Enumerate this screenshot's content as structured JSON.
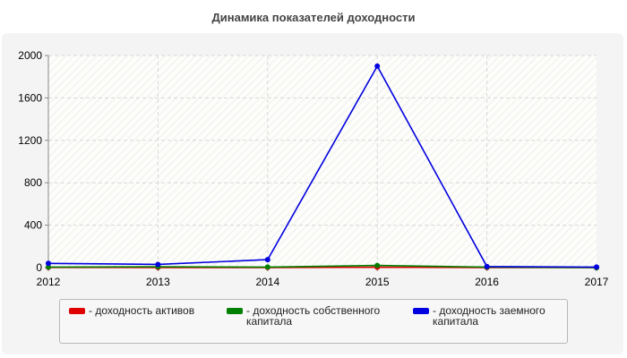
{
  "chart_data": {
    "type": "line",
    "title": "Динамика показателей доходности",
    "x": [
      2012,
      2013,
      2014,
      2015,
      2016,
      2017
    ],
    "x_tick_labels": [
      "2012",
      "2013",
      "2014",
      "2015",
      "2016",
      "2017"
    ],
    "y_tick_labels": [
      "0",
      "400",
      "800",
      "1200",
      "1600",
      "2000"
    ],
    "ylim": [
      0,
      2000
    ],
    "xlim": [
      2012,
      2017
    ],
    "grid": true,
    "legend_position": "bottom",
    "series": [
      {
        "name": "- доходность активов",
        "color": "#e00000",
        "values": [
          2,
          1,
          1,
          3,
          1,
          0
        ]
      },
      {
        "name": "- доходность собственного капитала",
        "color": "#008000",
        "values": [
          5,
          8,
          5,
          20,
          5,
          0
        ]
      },
      {
        "name": "- доходность заемного капитала",
        "color": "#0000e0",
        "values": [
          40,
          30,
          75,
          1900,
          10,
          5
        ]
      }
    ]
  }
}
